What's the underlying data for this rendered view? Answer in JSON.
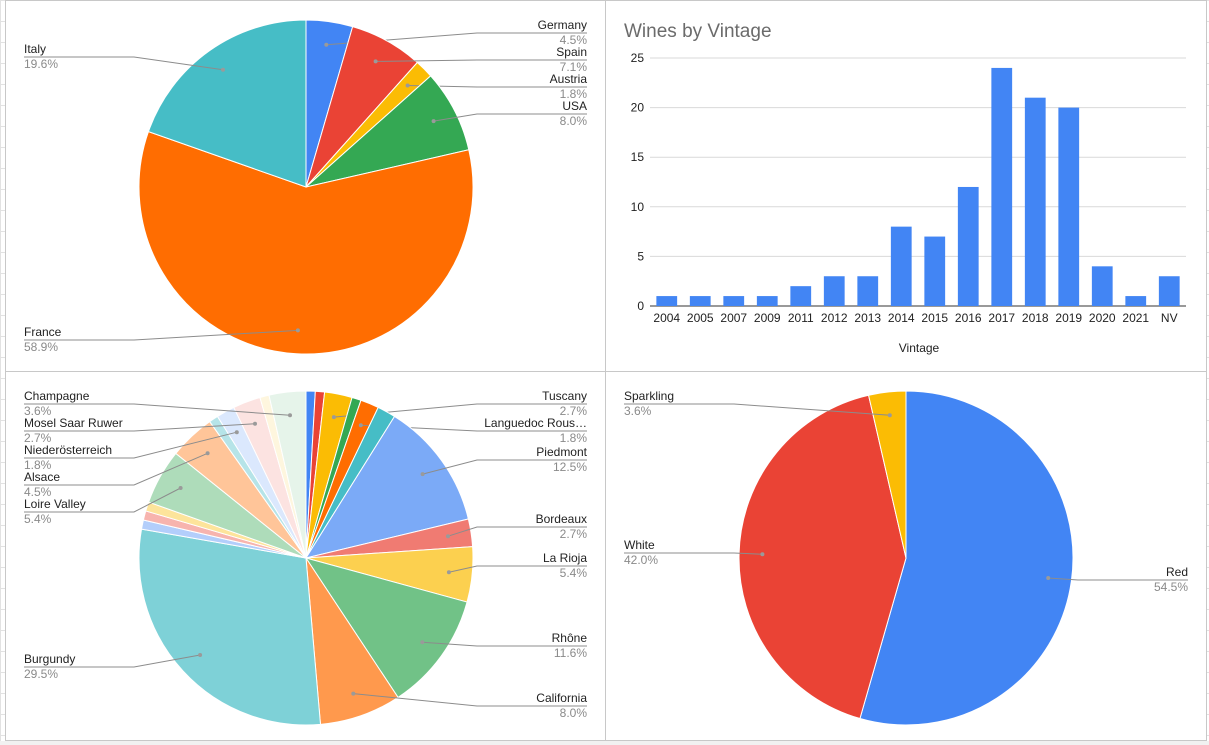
{
  "chart_data": [
    {
      "type": "pie",
      "title": "",
      "slices": [
        {
          "label": "Germany",
          "value": 4.5,
          "pct_label": "4.5%",
          "color": "#4285F4"
        },
        {
          "label": "Spain",
          "value": 7.1,
          "pct_label": "7.1%",
          "color": "#EA4335"
        },
        {
          "label": "Austria",
          "value": 1.8,
          "pct_label": "1.8%",
          "color": "#FBBC04"
        },
        {
          "label": "USA",
          "value": 8.0,
          "pct_label": "8.0%",
          "color": "#34A853"
        },
        {
          "label": "France",
          "value": 58.9,
          "pct_label": "58.9%",
          "color": "#FF6D01"
        },
        {
          "label": "Italy",
          "value": 19.6,
          "pct_label": "19.6%",
          "color": "#46BDC6"
        }
      ]
    },
    {
      "type": "bar",
      "title": "Wines by Vintage",
      "xlabel": "Vintage",
      "ylabel": "",
      "ylim": [
        0,
        25
      ],
      "yticks": [
        0,
        5,
        10,
        15,
        20,
        25
      ],
      "grid": true,
      "color": "#4285F4",
      "categories": [
        "2004",
        "2005",
        "2007",
        "2009",
        "2011",
        "2012",
        "2013",
        "2014",
        "2015",
        "2016",
        "2017",
        "2018",
        "2019",
        "2020",
        "2021",
        "NV"
      ],
      "values": [
        1,
        1,
        1,
        1,
        2,
        3,
        3,
        8,
        7,
        12,
        24,
        21,
        20,
        4,
        1,
        3
      ]
    },
    {
      "type": "pie",
      "title": "",
      "slices": [
        {
          "label": "",
          "value": 0.9,
          "pct_label": "",
          "color": "#4285F4"
        },
        {
          "label": "",
          "value": 0.9,
          "pct_label": "",
          "color": "#EA4335"
        },
        {
          "label": "Tuscany",
          "value": 2.7,
          "pct_label": "2.7%",
          "color": "#FBBC04"
        },
        {
          "label": "",
          "value": 0.9,
          "pct_label": "",
          "color": "#34A853"
        },
        {
          "label": "Languedoc Rous…",
          "value": 1.8,
          "pct_label": "1.8%",
          "color": "#FF6D01"
        },
        {
          "label": "",
          "value": 1.8,
          "pct_label": "",
          "color": "#46BDC6"
        },
        {
          "label": "Piedmont",
          "value": 12.5,
          "pct_label": "12.5%",
          "color": "#7BAAF7"
        },
        {
          "label": "Bordeaux",
          "value": 2.7,
          "pct_label": "2.7%",
          "color": "#F07B72"
        },
        {
          "label": "La Rioja",
          "value": 5.4,
          "pct_label": "5.4%",
          "color": "#FCD04F"
        },
        {
          "label": "Rhône",
          "value": 11.6,
          "pct_label": "11.6%",
          "color": "#71C287"
        },
        {
          "label": "California",
          "value": 8.0,
          "pct_label": "8.0%",
          "color": "#FF994D"
        },
        {
          "label": "Burgundy",
          "value": 29.5,
          "pct_label": "29.5%",
          "color": "#7ED1D7"
        },
        {
          "label": "",
          "value": 0.9,
          "pct_label": "",
          "color": "#B3CEFB"
        },
        {
          "label": "",
          "value": 0.9,
          "pct_label": "",
          "color": "#F7B4AE"
        },
        {
          "label": "",
          "value": 0.9,
          "pct_label": "",
          "color": "#FDE49B"
        },
        {
          "label": "Loire Valley",
          "value": 5.4,
          "pct_label": "5.4%",
          "color": "#AEDCBA"
        },
        {
          "label": "Alsace",
          "value": 4.5,
          "pct_label": "4.5%",
          "color": "#FFC599"
        },
        {
          "label": "",
          "value": 0.9,
          "pct_label": "",
          "color": "#B6E4E8"
        },
        {
          "label": "Niederösterreich",
          "value": 1.8,
          "pct_label": "1.8%",
          "color": "#DBE8FD"
        },
        {
          "label": "Mosel Saar Ruwer",
          "value": 2.7,
          "pct_label": "2.7%",
          "color": "#FCE3E1"
        },
        {
          "label": "",
          "value": 0.9,
          "pct_label": "",
          "color": "#FEF6DE"
        },
        {
          "label": "Champagne",
          "value": 3.6,
          "pct_label": "3.6%",
          "color": "#E6F4EA"
        }
      ]
    },
    {
      "type": "pie",
      "title": "",
      "slices": [
        {
          "label": "Red",
          "value": 54.5,
          "pct_label": "54.5%",
          "color": "#4285F4"
        },
        {
          "label": "White",
          "value": 42.0,
          "pct_label": "42.0%",
          "color": "#EA4335"
        },
        {
          "label": "Sparkling",
          "value": 3.6,
          "pct_label": "3.6%",
          "color": "#FBBC04"
        }
      ]
    }
  ]
}
